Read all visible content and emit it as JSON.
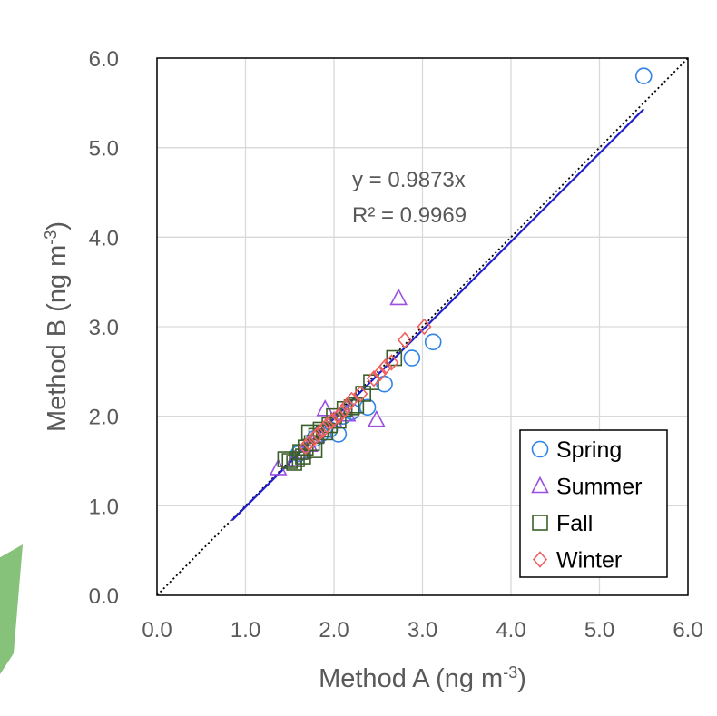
{
  "chart_data": {
    "type": "scatter",
    "title": "",
    "xlabel": "Method A (ng m",
    "xlabel_sup": "-3",
    "xlabel_end": ")",
    "ylabel": "Method B (ng m",
    "ylabel_sup": "-3",
    "ylabel_end": ")",
    "xlim": [
      0,
      6
    ],
    "ylim": [
      0,
      6
    ],
    "xticks": [
      "0.0",
      "1.0",
      "2.0",
      "3.0",
      "4.0",
      "5.0",
      "6.0"
    ],
    "yticks": [
      "0.0",
      "1.0",
      "2.0",
      "3.0",
      "4.0",
      "5.0",
      "6.0"
    ],
    "grid": true,
    "legend_position": "bottom-right",
    "annotation": {
      "equation": "y = 0.9873x",
      "r2": "R² = 0.9969"
    },
    "fit_line": {
      "slope": 0.9873,
      "x_range": [
        0.85,
        5.5
      ],
      "color": "#1f1fcc"
    },
    "identity_line": {
      "slope": 1,
      "x_range": [
        0,
        6
      ],
      "style": "dotted",
      "color": "#000000"
    },
    "series": [
      {
        "name": "Spring",
        "marker": "circle",
        "color": "#2f84e8",
        "points": [
          [
            5.5,
            5.8
          ],
          [
            3.12,
            2.83
          ],
          [
            2.88,
            2.65
          ],
          [
            2.57,
            2.36
          ],
          [
            2.38,
            2.1
          ],
          [
            2.05,
            1.8
          ],
          [
            1.95,
            1.85
          ],
          [
            2.2,
            2.05
          ],
          [
            1.78,
            1.75
          ],
          [
            1.6,
            1.58
          ],
          [
            1.85,
            1.8
          ],
          [
            2.1,
            2.0
          ]
        ]
      },
      {
        "name": "Summer",
        "marker": "triangle",
        "color": "#9b4fe0",
        "points": [
          [
            2.73,
            3.32
          ],
          [
            1.9,
            2.08
          ],
          [
            2.48,
            1.96
          ],
          [
            1.37,
            1.42
          ],
          [
            1.65,
            1.6
          ],
          [
            1.8,
            1.78
          ],
          [
            2.0,
            1.95
          ],
          [
            2.15,
            2.02
          ],
          [
            1.55,
            1.52
          ],
          [
            1.72,
            1.68
          ]
        ]
      },
      {
        "name": "Fall",
        "marker": "square",
        "color": "#3b5f2a",
        "points": [
          [
            2.68,
            2.65
          ],
          [
            2.42,
            2.38
          ],
          [
            2.33,
            2.25
          ],
          [
            2.25,
            2.12
          ],
          [
            2.12,
            2.08
          ],
          [
            2.0,
            2.0
          ],
          [
            1.95,
            1.9
          ],
          [
            1.85,
            1.85
          ],
          [
            1.8,
            1.78
          ],
          [
            1.75,
            1.7
          ],
          [
            1.72,
            1.82
          ],
          [
            1.68,
            1.65
          ],
          [
            1.62,
            1.6
          ],
          [
            1.58,
            1.52
          ],
          [
            1.55,
            1.48
          ],
          [
            1.5,
            1.5
          ],
          [
            1.45,
            1.52
          ],
          [
            1.65,
            1.55
          ],
          [
            1.9,
            1.82
          ],
          [
            2.05,
            1.95
          ],
          [
            2.2,
            2.1
          ],
          [
            1.78,
            1.62
          ]
        ]
      },
      {
        "name": "Winter",
        "marker": "diamond",
        "color": "#f06060",
        "points": [
          [
            3.02,
            3.0
          ],
          [
            2.8,
            2.85
          ],
          [
            2.65,
            2.6
          ],
          [
            2.58,
            2.55
          ],
          [
            2.52,
            2.48
          ],
          [
            2.45,
            2.42
          ],
          [
            2.3,
            2.25
          ],
          [
            2.2,
            2.18
          ],
          [
            2.15,
            2.12
          ],
          [
            2.1,
            2.05
          ],
          [
            2.05,
            2.0
          ],
          [
            1.98,
            1.95
          ],
          [
            1.92,
            1.9
          ],
          [
            1.88,
            1.85
          ],
          [
            1.82,
            1.8
          ],
          [
            1.78,
            1.76
          ],
          [
            1.72,
            1.7
          ],
          [
            1.68,
            1.66
          ]
        ]
      }
    ]
  }
}
